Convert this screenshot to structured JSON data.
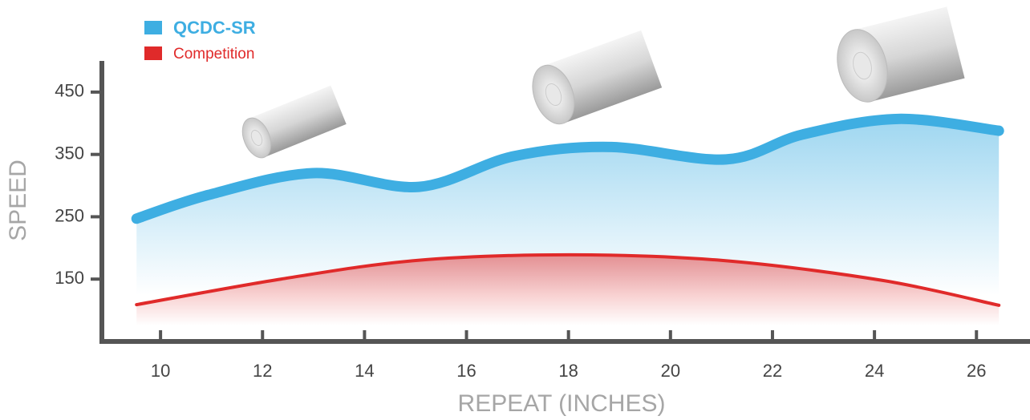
{
  "chart_data": {
    "type": "line",
    "x_label": "REPEAT (INCHES)",
    "y_label": "SPEED",
    "xlim": [
      8.85,
      27.05
    ],
    "ylim": [
      50,
      500
    ],
    "xticks": [
      10,
      12,
      14,
      16,
      18,
      20,
      22,
      24,
      26
    ],
    "yticks": [
      150,
      250,
      350,
      450
    ],
    "grid": false,
    "legend": "top-left",
    "series": [
      {
        "name": "QCDC-SR",
        "color": "#3eaee2",
        "x": [
          9.53,
          10.94,
          12.99,
          15.07,
          16.92,
          18.81,
          21.09,
          22.59,
          24.47,
          26.44
        ],
        "values": [
          247,
          285,
          320,
          298,
          347,
          362,
          342,
          382,
          407,
          388
        ]
      },
      {
        "name": "Competition",
        "color": "#e02a2a",
        "x": [
          9.53,
          12.36,
          15.03,
          18.02,
          21.01,
          24.15,
          26.44
        ],
        "values": [
          109,
          150,
          180,
          189,
          180,
          148,
          108
        ]
      }
    ]
  }
}
